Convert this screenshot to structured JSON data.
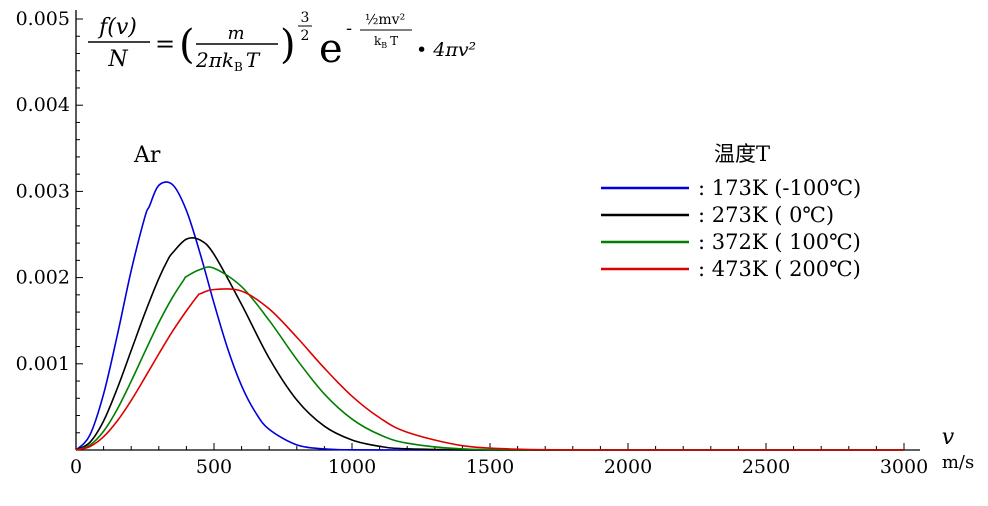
{
  "chart_data": {
    "type": "line",
    "title": "",
    "annotation": "Ar",
    "formula": {
      "lhs_num": "f(v)",
      "lhs_den": "N",
      "eq": "=",
      "paren_num": "m",
      "paren_den_a": "2πk",
      "paren_den_sub": "B",
      "paren_den_b": "T",
      "exp32_num": "3",
      "exp32_den": "2",
      "e": "e",
      "exp_neg": "-",
      "exp_num": "½mv²",
      "exp_den": "k",
      "exp_den_sub": "B",
      "exp_den_b": "T",
      "tail": "• 4πv²"
    },
    "xlabel": "v",
    "xunit": "m/s",
    "ylabel": "",
    "xlim": [
      0,
      3000
    ],
    "ylim": [
      0,
      0.005
    ],
    "x_ticks": [
      0,
      500,
      1000,
      1500,
      2000,
      2500,
      3000
    ],
    "x_tick_labels": [
      "0",
      "500",
      "1000",
      "1500",
      "2000",
      "2500",
      "3000"
    ],
    "y_ticks": [
      0.001,
      0.002,
      0.003,
      0.004,
      0.005
    ],
    "y_tick_labels": [
      "0.001",
      "0.002",
      "0.003",
      "0.004",
      "0.005"
    ],
    "grid": false,
    "legend_title": "温度T",
    "legend_position": "right",
    "series": [
      {
        "label": ": 173K (-100℃)",
        "color": "#0000dd",
        "T": 173,
        "x": [
          0,
          50,
          100,
          150,
          200,
          250,
          266,
          300,
          350,
          400,
          450,
          500,
          550,
          600,
          650,
          700,
          800,
          900,
          1000,
          1200,
          1500,
          2000,
          3000
        ],
        "y": [
          0,
          0.000171,
          0.00065,
          0.001337,
          0.002081,
          0.002708,
          0.002828,
          0.00307,
          0.003078,
          0.002779,
          0.002276,
          0.001703,
          0.001172,
          0.000745,
          0.000438,
          0.000239,
          5.9e-05,
          1.2e-05,
          2e-06,
          0,
          0,
          0,
          0
        ]
      },
      {
        "label": ": 273K (   0℃)",
        "color": "#000000",
        "T": 273,
        "x": [
          0,
          50,
          100,
          150,
          200,
          250,
          300,
          334,
          350,
          400,
          450,
          500,
          600,
          700,
          800,
          900,
          1000,
          1100,
          1200,
          1500,
          2000,
          3000
        ],
        "y": [
          0,
          8.8e-05,
          0.000337,
          0.000718,
          0.001154,
          0.00159,
          0.001989,
          0.002215,
          0.002287,
          0.002446,
          0.002435,
          0.00227,
          0.001688,
          0.001064,
          0.00058,
          0.000276,
          0.000116,
          4.3e-05,
          1.4e-05,
          0,
          0,
          0
        ]
      },
      {
        "label": ": 372K ( 100℃)",
        "color": "#007f00",
        "T": 372,
        "x": [
          0,
          50,
          100,
          150,
          200,
          250,
          300,
          350,
          391,
          400,
          450,
          500,
          600,
          700,
          800,
          900,
          1000,
          1100,
          1200,
          1400,
          1700,
          2000,
          3000
        ],
        "y": [
          0,
          5.6e-05,
          0.000218,
          0.000476,
          0.000798,
          0.001142,
          0.001478,
          0.001773,
          0.001976,
          0.002012,
          0.002094,
          0.002109,
          0.001895,
          0.001503,
          0.00105,
          0.000649,
          0.000359,
          0.000178,
          7.9e-05,
          1.2e-05,
          0,
          0,
          0
        ]
      },
      {
        "label": ": 473K ( 200℃)",
        "color": "#dd0000",
        "T": 473,
        "x": [
          0,
          50,
          100,
          150,
          200,
          250,
          300,
          350,
          400,
          441,
          450,
          500,
          600,
          700,
          800,
          900,
          1000,
          1100,
          1200,
          1400,
          1600,
          1800,
          2000,
          3000
        ],
        "y": [
          0,
          3.9e-05,
          0.000154,
          0.000339,
          0.000575,
          0.000842,
          0.001115,
          0.001378,
          0.001614,
          0.00179,
          0.001812,
          0.001862,
          0.001843,
          0.001637,
          0.001308,
          0.000949,
          0.000624,
          0.000374,
          0.000206,
          5e-05,
          9e-06,
          1e-06,
          0,
          0
        ]
      }
    ]
  }
}
